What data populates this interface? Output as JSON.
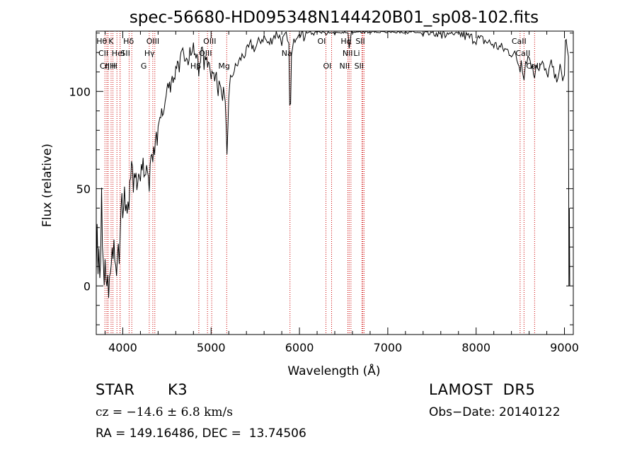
{
  "chart_data": {
    "type": "line",
    "title": "spec-56680-HD095348N144420B01_sp08-102.fits",
    "xlabel": "Wavelength (Å)",
    "ylabel": "Flux (relative)",
    "xlim": [
      3700,
      9100
    ],
    "ylim": [
      -25,
      131
    ],
    "xticks": [
      4000,
      5000,
      6000,
      7000,
      8000,
      9000
    ],
    "yticks": [
      0,
      50,
      100
    ],
    "grid": false,
    "series": [
      {
        "color": "#000000",
        "points": [
          [
            3700,
            12
          ],
          [
            3710,
            28
          ],
          [
            3720,
            8
          ],
          [
            3730,
            22
          ],
          [
            3740,
            2
          ],
          [
            3750,
            12
          ],
          [
            3760,
            52
          ],
          [
            3770,
            18
          ],
          [
            3780,
            10
          ],
          [
            3790,
            0
          ],
          [
            3800,
            12
          ],
          [
            3810,
            2
          ],
          [
            3820,
            -3
          ],
          [
            3830,
            8
          ],
          [
            3840,
            -5
          ],
          [
            3850,
            3
          ],
          [
            3860,
            5
          ],
          [
            3870,
            15
          ],
          [
            3880,
            18
          ],
          [
            3890,
            14
          ],
          [
            3900,
            20
          ],
          [
            3910,
            10
          ],
          [
            3920,
            14
          ],
          [
            3930,
            5
          ],
          [
            3940,
            12
          ],
          [
            3950,
            20
          ],
          [
            3960,
            10
          ],
          [
            3970,
            24
          ],
          [
            3980,
            36
          ],
          [
            3990,
            44
          ],
          [
            4000,
            36
          ],
          [
            4010,
            42
          ],
          [
            4020,
            48
          ],
          [
            4030,
            40
          ],
          [
            4040,
            45
          ],
          [
            4050,
            39
          ],
          [
            4060,
            44
          ],
          [
            4070,
            41
          ],
          [
            4080,
            50
          ],
          [
            4090,
            55
          ],
          [
            4100,
            62
          ],
          [
            4110,
            58
          ],
          [
            4120,
            52
          ],
          [
            4130,
            60
          ],
          [
            4140,
            55
          ],
          [
            4150,
            58
          ],
          [
            4160,
            50
          ],
          [
            4170,
            56
          ],
          [
            4180,
            54
          ],
          [
            4190,
            60
          ],
          [
            4200,
            55
          ],
          [
            4210,
            64
          ],
          [
            4220,
            58
          ],
          [
            4230,
            62
          ],
          [
            4240,
            56
          ],
          [
            4250,
            60
          ],
          [
            4260,
            58
          ],
          [
            4270,
            64
          ],
          [
            4280,
            60
          ],
          [
            4290,
            57
          ],
          [
            4300,
            50
          ],
          [
            4310,
            62
          ],
          [
            4320,
            66
          ],
          [
            4330,
            70
          ],
          [
            4340,
            60
          ],
          [
            4350,
            72
          ],
          [
            4360,
            64
          ],
          [
            4370,
            74
          ],
          [
            4380,
            78
          ],
          [
            4390,
            72
          ],
          [
            4400,
            82
          ],
          [
            4420,
            84
          ],
          [
            4440,
            90
          ],
          [
            4460,
            88
          ],
          [
            4480,
            96
          ],
          [
            4500,
            100
          ],
          [
            4520,
            104
          ],
          [
            4540,
            102
          ],
          [
            4560,
            110
          ],
          [
            4580,
            104
          ],
          [
            4600,
            112
          ],
          [
            4620,
            116
          ],
          [
            4640,
            112
          ],
          [
            4660,
            118
          ],
          [
            4680,
            120
          ],
          [
            4700,
            114
          ],
          [
            4720,
            120
          ],
          [
            4740,
            116
          ],
          [
            4760,
            122
          ],
          [
            4780,
            118
          ],
          [
            4800,
            124
          ],
          [
            4820,
            117
          ],
          [
            4840,
            120
          ],
          [
            4860,
            110
          ],
          [
            4880,
            118
          ],
          [
            4900,
            122
          ],
          [
            4920,
            114
          ],
          [
            4940,
            118
          ],
          [
            4960,
            112
          ],
          [
            4980,
            116
          ],
          [
            5000,
            108
          ],
          [
            5020,
            112
          ],
          [
            5040,
            104
          ],
          [
            5060,
            110
          ],
          [
            5080,
            100
          ],
          [
            5100,
            106
          ],
          [
            5120,
            96
          ],
          [
            5140,
            100
          ],
          [
            5160,
            92
          ],
          [
            5170,
            80
          ],
          [
            5180,
            66
          ],
          [
            5190,
            82
          ],
          [
            5200,
            98
          ],
          [
            5220,
            106
          ],
          [
            5250,
            110
          ],
          [
            5300,
            114
          ],
          [
            5350,
            118
          ],
          [
            5400,
            120
          ],
          [
            5450,
            124
          ],
          [
            5500,
            122
          ],
          [
            5550,
            126
          ],
          [
            5600,
            128
          ],
          [
            5650,
            124
          ],
          [
            5700,
            128
          ],
          [
            5750,
            130
          ],
          [
            5800,
            126
          ],
          [
            5850,
            128
          ],
          [
            5880,
            122
          ],
          [
            5890,
            96
          ],
          [
            5900,
            92
          ],
          [
            5910,
            118
          ],
          [
            5950,
            128
          ],
          [
            6000,
            132
          ],
          [
            6050,
            128
          ],
          [
            6100,
            134
          ],
          [
            6150,
            130
          ],
          [
            6200,
            134
          ],
          [
            6250,
            130
          ],
          [
            6300,
            132
          ],
          [
            6350,
            134
          ],
          [
            6400,
            130
          ],
          [
            6450,
            134
          ],
          [
            6500,
            136
          ],
          [
            6550,
            130
          ],
          [
            6563,
            124
          ],
          [
            6600,
            134
          ],
          [
            6650,
            136
          ],
          [
            6700,
            132
          ],
          [
            6750,
            134
          ],
          [
            6800,
            132
          ],
          [
            6850,
            134
          ],
          [
            6900,
            132
          ],
          [
            6950,
            134
          ],
          [
            7000,
            132
          ],
          [
            7100,
            134
          ],
          [
            7200,
            132
          ],
          [
            7300,
            134
          ],
          [
            7400,
            131
          ],
          [
            7500,
            132
          ],
          [
            7600,
            130
          ],
          [
            7700,
            131
          ],
          [
            7800,
            130
          ],
          [
            7900,
            128
          ],
          [
            8000,
            127
          ],
          [
            8100,
            126
          ],
          [
            8200,
            124
          ],
          [
            8300,
            122
          ],
          [
            8400,
            120
          ],
          [
            8450,
            118
          ],
          [
            8498,
            112
          ],
          [
            8510,
            118
          ],
          [
            8542,
            106
          ],
          [
            8560,
            116
          ],
          [
            8600,
            118
          ],
          [
            8662,
            108
          ],
          [
            8680,
            116
          ],
          [
            8700,
            112
          ],
          [
            8750,
            114
          ],
          [
            8800,
            108
          ],
          [
            8850,
            114
          ],
          [
            8900,
            106
          ],
          [
            8950,
            112
          ],
          [
            8980,
            104
          ],
          [
            9000,
            110
          ],
          [
            9010,
            126
          ],
          [
            9030,
            124
          ],
          [
            9045,
            118
          ],
          [
            9050,
            0
          ],
          [
            9055,
            40
          ],
          [
            9060,
            0
          ]
        ]
      }
    ],
    "lines": [
      {
        "x": 3798,
        "label": "Hθ",
        "row": 1
      },
      {
        "x": 3820,
        "label": "CII",
        "row": 2
      },
      {
        "x": 3835,
        "label": "CIIH",
        "row": 3
      },
      {
        "x": 3868,
        "label": "",
        "row": 0
      },
      {
        "x": 3889,
        "label": "η",
        "row": 3
      },
      {
        "x": 3934,
        "label": "K",
        "row": 1
      },
      {
        "x": 3969,
        "label": "H",
        "row": 3
      },
      {
        "x": 3970,
        "label": "HeI",
        "row": 2
      },
      {
        "x": 4072,
        "label": "SII",
        "row": 2
      },
      {
        "x": 4102,
        "label": "Hδ",
        "row": 1
      },
      {
        "x": 4300,
        "label": "G",
        "row": 3
      },
      {
        "x": 4340,
        "label": "Hγ",
        "row": 2
      },
      {
        "x": 4363,
        "label": "OIII",
        "row": 1
      },
      {
        "x": 4861,
        "label": "Hβ",
        "row": 3
      },
      {
        "x": 4959,
        "label": "OIII",
        "row": 2
      },
      {
        "x": 5007,
        "label": "OIII",
        "row": 1
      },
      {
        "x": 5177,
        "label": "Mg",
        "row": 3
      },
      {
        "x": 5893,
        "label": "Na",
        "row": 2
      },
      {
        "x": 6300,
        "label": "OI",
        "row": 1
      },
      {
        "x": 6364,
        "label": "OI",
        "row": 3
      },
      {
        "x": 6548,
        "label": "NII",
        "row": 3
      },
      {
        "x": 6563,
        "label": "Hα",
        "row": 1
      },
      {
        "x": 6583,
        "label": "NII",
        "row": 2
      },
      {
        "x": 6707,
        "label": "Li",
        "row": 2
      },
      {
        "x": 6717,
        "label": "SII",
        "row": 3
      },
      {
        "x": 6731,
        "label": "SII",
        "row": 1
      },
      {
        "x": 8498,
        "label": "CaII",
        "row": 1
      },
      {
        "x": 8542,
        "label": "CaII",
        "row": 2
      },
      {
        "x": 8662,
        "label": "CaII",
        "row": 3
      }
    ]
  },
  "info": {
    "object_type": "STAR",
    "subclass": "K3",
    "survey": "LAMOST  DR5",
    "cz": "cz = −14.6 ± 6.8 km/s",
    "obs_date": "Obs−Date: 20140122",
    "coords": "RA = 149.16486, DEC =  13.74506"
  }
}
